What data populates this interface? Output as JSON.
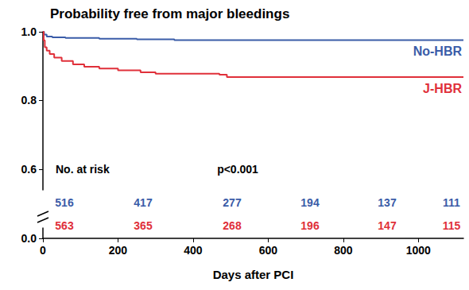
{
  "chart_data": {
    "type": "line",
    "title": "Probability free from major bleedings",
    "x_label": "Days after PCI",
    "series": [
      {
        "name": "No-HBR",
        "color": "#3a5ca8",
        "x": [
          0,
          3,
          10,
          25,
          60,
          150,
          250,
          350,
          1120
        ],
        "values": [
          1.0,
          0.992,
          0.986,
          0.984,
          0.982,
          0.98,
          0.978,
          0.976,
          0.976
        ]
      },
      {
        "name": "J-HBR",
        "color": "#e0303a",
        "x": [
          0,
          2,
          5,
          10,
          18,
          30,
          50,
          80,
          110,
          150,
          200,
          260,
          300,
          470,
          490,
          1120
        ],
        "values": [
          1.0,
          0.975,
          0.955,
          0.945,
          0.935,
          0.925,
          0.915,
          0.905,
          0.898,
          0.893,
          0.888,
          0.882,
          0.878,
          0.875,
          0.868,
          0.868
        ]
      }
    ],
    "xlim": [
      0,
      1120
    ],
    "xticks": [
      0,
      200,
      400,
      600,
      800,
      1000
    ],
    "ylim": [
      0,
      1
    ],
    "yticks": [
      {
        "value": 0,
        "label": "0.0"
      },
      {
        "value": 0.6,
        "label": "0.6"
      },
      {
        "value": 0.8,
        "label": "0.8"
      },
      {
        "value": 1,
        "label": "1.0"
      }
    ],
    "grid": false,
    "annotations": [
      "p<0.001"
    ],
    "at_risk": {
      "title": "No. at risk",
      "rows": [
        [
          516,
          417,
          277,
          194,
          137,
          111
        ],
        [
          563,
          365,
          268,
          196,
          147,
          115
        ]
      ]
    }
  }
}
